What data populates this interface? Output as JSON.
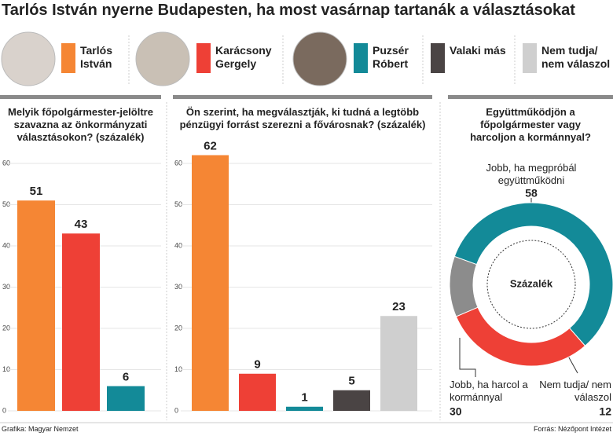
{
  "title": "Tarlós István nyerne Budapesten, ha most vasárnap tartanák a választásokat",
  "legend": [
    {
      "name": "Tarlós István",
      "color": "#f58634"
    },
    {
      "name": "Karácsony Gergely",
      "color": "#ee4036"
    },
    {
      "name": "Puzsér Róbert",
      "color": "#138a98"
    },
    {
      "name": "Valaki más",
      "color": "#4a4444"
    },
    {
      "name": "Nem tudja/ nem válaszol",
      "color": "#cfcfcf"
    }
  ],
  "chart_data": [
    {
      "type": "bar",
      "title": "Melyik főpolgármester-jelöltre szavazna az önkormányzati választásokon? (százalék)",
      "categories": [
        null,
        null,
        null
      ],
      "values": [
        51,
        43,
        6
      ],
      "colors": [
        "#f58634",
        "#ee4036",
        "#138a98"
      ],
      "ylim": [
        0,
        60
      ],
      "yticks": [
        0,
        10,
        20,
        30,
        40,
        50,
        60
      ],
      "grid": true
    },
    {
      "type": "bar",
      "title": "Ön szerint, ha megválasztják, ki tudná a legtöbb pénzügyi forrást szerezni a fővárosnak? (százalék)",
      "categories": [
        null,
        null,
        null,
        null,
        null
      ],
      "values": [
        62,
        9,
        1,
        5,
        23
      ],
      "colors": [
        "#f58634",
        "#ee4036",
        "#138a98",
        "#4a4444",
        "#cfcfcf"
      ],
      "ylim": [
        0,
        60
      ],
      "yticks": [
        0,
        10,
        20,
        30,
        40,
        50,
        60
      ],
      "grid": true
    },
    {
      "type": "pie",
      "donut": true,
      "title": "Együttműködjön a főpolgármester vagy harcoljon a kormánnyal?",
      "center_label": "Százalék",
      "categories": [
        "Jobb, ha megpróbál együttműködni",
        "Jobb, ha harcol a kormánnyal",
        "Nem tudja/ nem válaszol"
      ],
      "values": [
        58,
        30,
        12
      ],
      "colors": [
        "#138a98",
        "#ee4036",
        "#8c8c8c"
      ]
    }
  ],
  "credit": "Grafika: Magyar Nemzet",
  "source": "Forrás: Nézőpont Intézet"
}
